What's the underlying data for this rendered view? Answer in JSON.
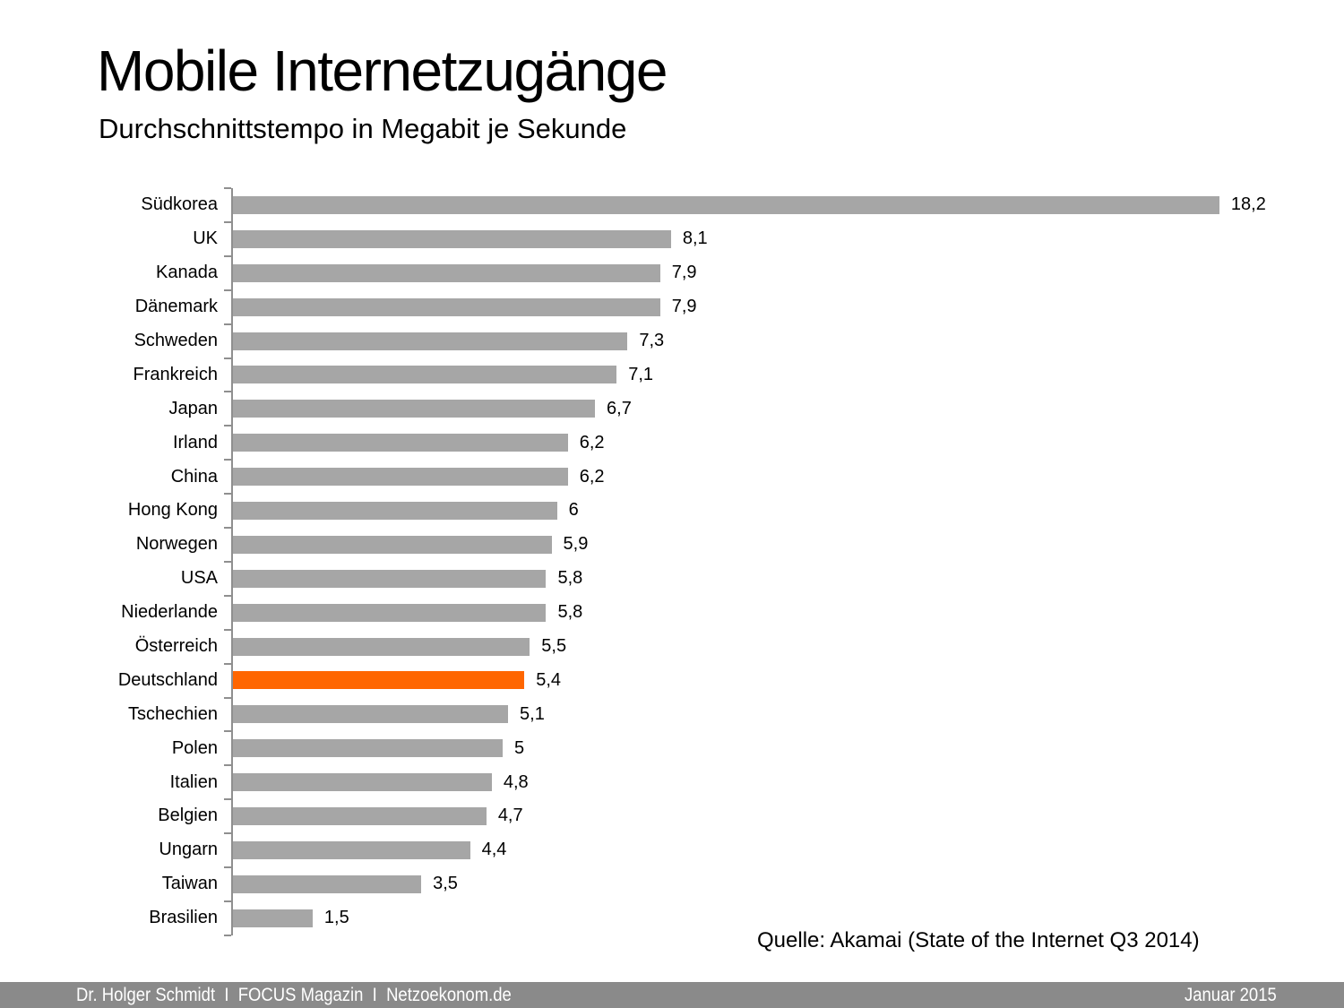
{
  "header": {
    "title": "Mobile Internetzugänge",
    "subtitle": "Durchschnittstempo in Megabit je Sekunde"
  },
  "chart_data": {
    "type": "bar",
    "orientation": "horizontal",
    "title": "Mobile Internetzugänge",
    "subtitle": "Durchschnittstempo in Megabit je Sekunde",
    "xlabel": "",
    "ylabel": "",
    "xlim": [
      0,
      18.2
    ],
    "grid": false,
    "legend": false,
    "categories": [
      "Südkorea",
      "UK",
      "Kanada",
      "Dänemark",
      "Schweden",
      "Frankreich",
      "Japan",
      "Irland",
      "China",
      "Hong Kong",
      "Norwegen",
      "USA",
      "Niederlande",
      "Österreich",
      "Deutschland",
      "Tschechien",
      "Polen",
      "Italien",
      "Belgien",
      "Ungarn",
      "Taiwan",
      "Brasilien"
    ],
    "values": [
      18.2,
      8.1,
      7.9,
      7.9,
      7.3,
      7.1,
      6.7,
      6.2,
      6.2,
      6,
      5.9,
      5.8,
      5.8,
      5.5,
      5.4,
      5.1,
      5,
      4.8,
      4.7,
      4.4,
      3.5,
      1.5
    ],
    "value_labels": [
      "18,2",
      "8,1",
      "7,9",
      "7,9",
      "7,3",
      "7,1",
      "6,7",
      "6,2",
      "6,2",
      "6",
      "5,9",
      "5,8",
      "5,8",
      "5,5",
      "5,4",
      "5,1",
      "5",
      "4,8",
      "4,7",
      "4,4",
      "3,5",
      "1,5"
    ],
    "highlight_category": "Deutschland",
    "highlight_index": 14,
    "bar_color": "#a6a6a6",
    "highlight_color": "#ff6600",
    "source": "Quelle: Akamai (State of the Internet Q3 2014)"
  },
  "footer": {
    "left": "Dr. Holger Schmidt  I  FOCUS Magazin  I  Netzoekonom.de",
    "right": "Januar 2015",
    "background": "#8a8a8a",
    "text_color": "#ffffff"
  }
}
